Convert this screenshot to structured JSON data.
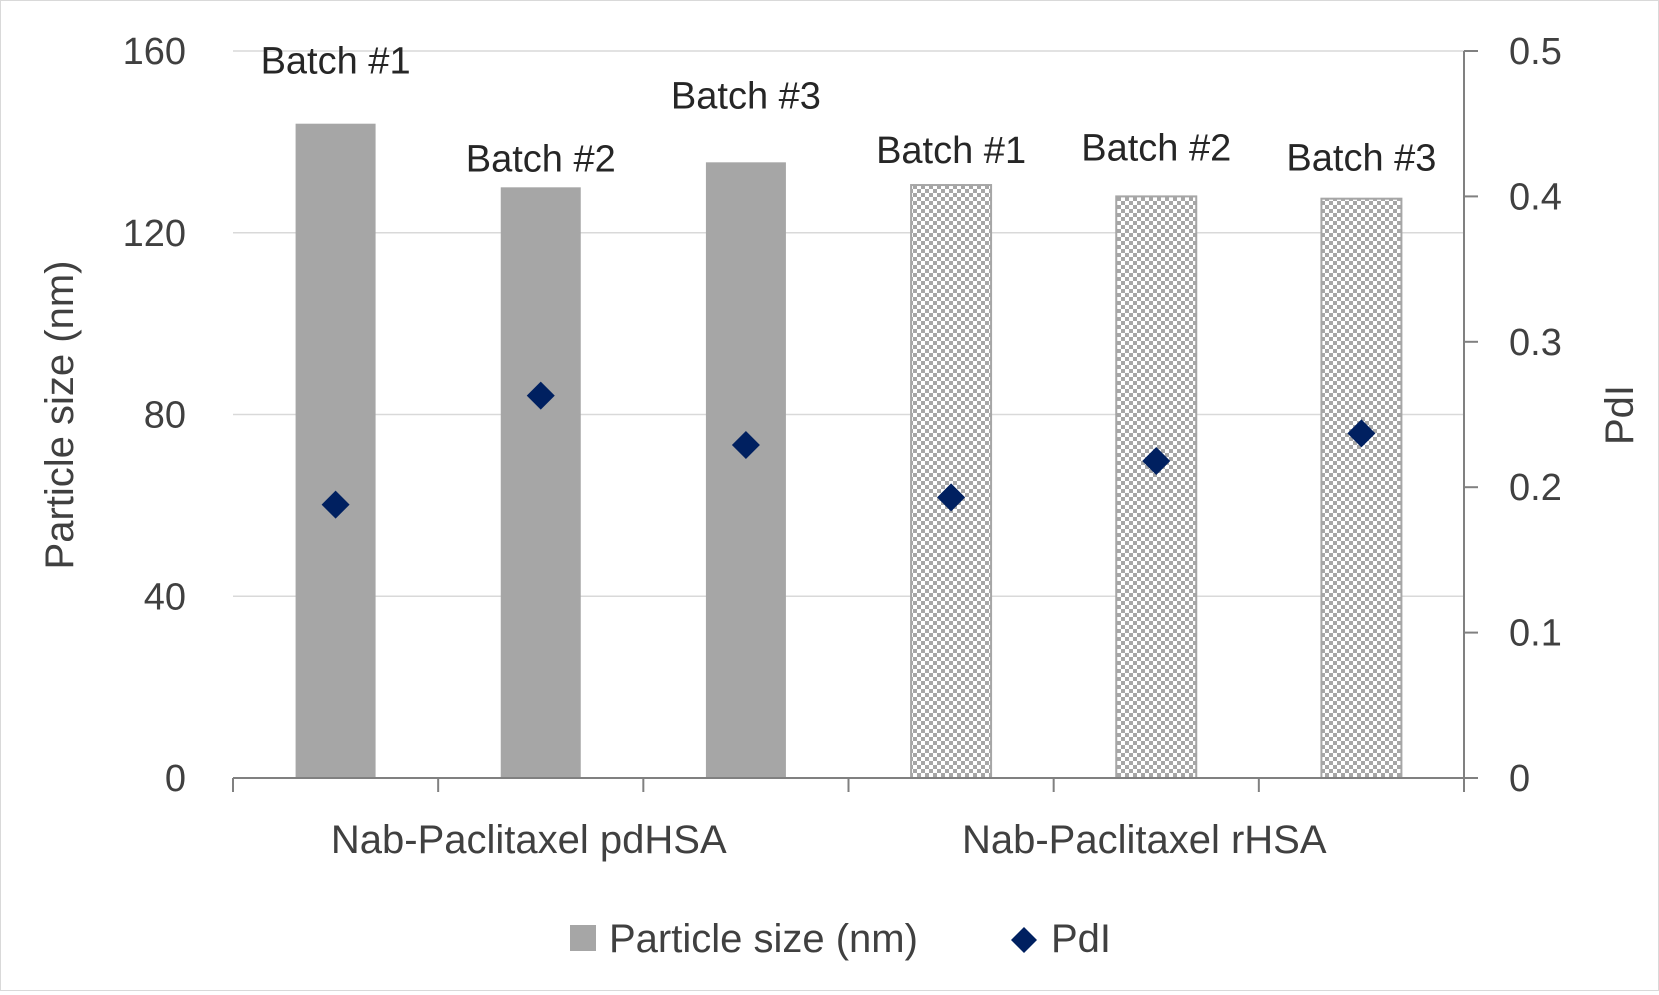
{
  "chart_data": {
    "type": "bar",
    "groups": [
      {
        "name": "Nab-Paclitaxel pdHSA",
        "categories": [
          "Batch #1",
          "Batch #2",
          "Batch #3"
        ],
        "pattern": "solid"
      },
      {
        "name": "Nab-Paclitaxel rHSA",
        "categories": [
          "Batch #1",
          "Batch #2",
          "Batch #3"
        ],
        "pattern": "checkered"
      }
    ],
    "series": [
      {
        "name": "Particle size (nm)",
        "type": "bar",
        "axis": "left",
        "color": "#a6a6a6",
        "values": [
          144,
          130,
          135.5,
          130.5,
          128,
          127.5
        ]
      },
      {
        "name": "PdI",
        "type": "scatter",
        "marker": "diamond",
        "axis": "right",
        "color": "#002060",
        "values": [
          0.188,
          0.263,
          0.229,
          0.193,
          0.218,
          0.237
        ]
      }
    ],
    "y_left": {
      "label": "Particle size (nm)",
      "ylim": [
        0,
        160
      ],
      "ticks": [
        "0",
        "40",
        "80",
        "120",
        "160"
      ]
    },
    "y_right": {
      "label": "PdI",
      "ylim": [
        0,
        0.5
      ],
      "ticks": [
        "0",
        "0.1",
        "0.2",
        "0.3",
        "0.4",
        "0.5"
      ]
    },
    "grid": true,
    "legend_position": "bottom"
  }
}
